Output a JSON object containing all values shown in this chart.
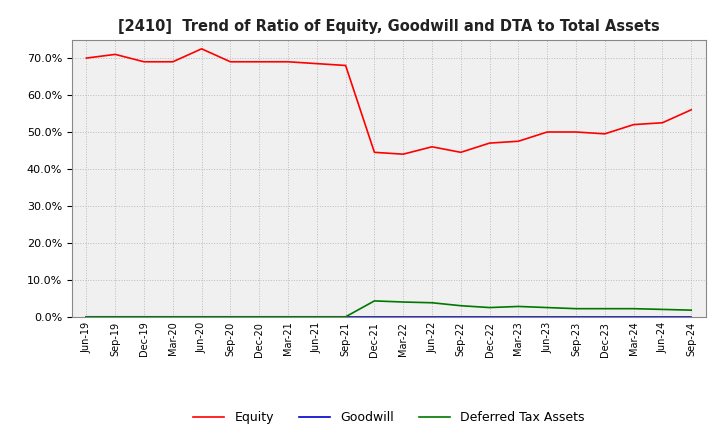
{
  "title": "[2410]  Trend of Ratio of Equity, Goodwill and DTA to Total Assets",
  "x_labels": [
    "Jun-19",
    "Sep-19",
    "Dec-19",
    "Mar-20",
    "Jun-20",
    "Sep-20",
    "Dec-20",
    "Mar-21",
    "Jun-21",
    "Sep-21",
    "Dec-21",
    "Mar-22",
    "Jun-22",
    "Sep-22",
    "Dec-22",
    "Mar-23",
    "Jun-23",
    "Sep-23",
    "Dec-23",
    "Mar-24",
    "Jun-24",
    "Sep-24"
  ],
  "equity": [
    0.7,
    0.71,
    0.69,
    0.69,
    0.725,
    0.69,
    0.69,
    0.69,
    0.685,
    0.68,
    0.445,
    0.44,
    0.46,
    0.445,
    0.47,
    0.475,
    0.5,
    0.5,
    0.495,
    0.52,
    0.525,
    0.56
  ],
  "goodwill": [
    0.0,
    0.0,
    0.0,
    0.0,
    0.0,
    0.0,
    0.0,
    0.0,
    0.0,
    0.0,
    0.0,
    0.0,
    0.0,
    0.0,
    0.0,
    0.0,
    0.0,
    0.0,
    0.0,
    0.0,
    0.0,
    0.0
  ],
  "dta": [
    0.0,
    0.0,
    0.0,
    0.0,
    0.0,
    0.0,
    0.0,
    0.0,
    0.0,
    0.0,
    0.043,
    0.04,
    0.038,
    0.03,
    0.025,
    0.028,
    0.025,
    0.022,
    0.022,
    0.022,
    0.02,
    0.018
  ],
  "equity_color": "#ff0000",
  "goodwill_color": "#0000cc",
  "dta_color": "#007700",
  "ylim": [
    0.0,
    0.75
  ],
  "yticks": [
    0.0,
    0.1,
    0.2,
    0.3,
    0.4,
    0.5,
    0.6,
    0.7
  ],
  "grid_color": "#bbbbbb",
  "background_color": "#ffffff",
  "plot_bg_color": "#f0f0f0",
  "legend_labels": [
    "Equity",
    "Goodwill",
    "Deferred Tax Assets"
  ]
}
